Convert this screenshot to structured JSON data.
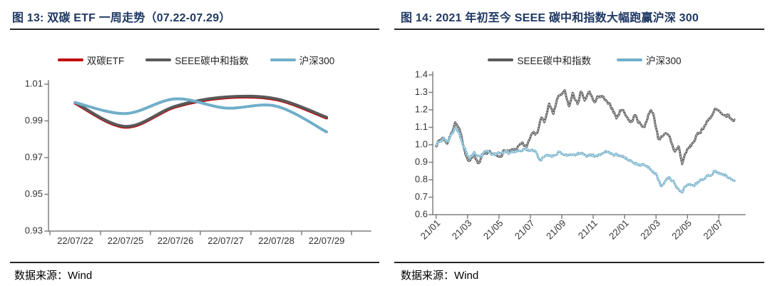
{
  "figures": [
    {
      "title": "图 13:  双碳 ETF 一周走势（07.22-07.29）",
      "source": "数据来源：Wind"
    },
    {
      "title": "图 14:  2021 年初至今 SEEE 碳中和指数大幅跑赢沪深 300",
      "source": "数据来源：Wind"
    }
  ],
  "colors": {
    "title_navy": "#1F3864",
    "rule": "#262626",
    "axis": "#808080",
    "tick_text": "#333333",
    "red": "#C00000",
    "gray": "#595959",
    "blue": "#70AEC9"
  },
  "chart_data": [
    {
      "type": "line",
      "title": "双碳 ETF 一周走势（07.22-07.29）",
      "categories": [
        "22/07/22",
        "22/07/25",
        "22/07/26",
        "22/07/27",
        "22/07/28",
        "22/07/29"
      ],
      "series": [
        {
          "name": "双碳ETF",
          "color": "#C00000",
          "values": [
            1.0,
            0.987,
            0.998,
            1.003,
            1.002,
            0.992
          ]
        },
        {
          "name": "SEEE碳中和指数",
          "color": "#595959",
          "values": [
            1.0,
            0.987,
            0.998,
            1.003,
            1.002,
            0.992
          ]
        },
        {
          "name": "沪深300",
          "color": "#70AEC9",
          "values": [
            1.0,
            0.994,
            1.002,
            0.997,
            0.998,
            0.984
          ]
        }
      ],
      "ylim": [
        0.93,
        1.01
      ],
      "yticks": [
        1.01,
        0.99,
        0.97,
        0.95,
        0.93
      ],
      "ytick_decimals": 2,
      "grid": false,
      "smooth": true,
      "legend_position": "top"
    },
    {
      "type": "line",
      "title": "2021 年初至今 SEEE 碳中和指数大幅跑赢沪深 300",
      "x_unit": "months since 2021-01",
      "xtick_months": [
        0,
        2,
        4,
        6,
        8,
        10,
        12,
        14,
        16,
        18
      ],
      "xtick_labels": [
        "21/01",
        "21/03",
        "21/05",
        "21/07",
        "21/09",
        "21/11",
        "22/01",
        "22/03",
        "22/05",
        "22/07"
      ],
      "xlim": [
        0,
        19.7
      ],
      "ylim": [
        0.6,
        1.4
      ],
      "yticks": [
        1.4,
        1.3,
        1.2,
        1.1,
        1.0,
        0.9,
        0.8,
        0.7,
        0.6
      ],
      "ytick_decimals": 1,
      "grid": false,
      "legend_position": "top",
      "noise": {
        "seed": 7,
        "step": 0.045
      },
      "series": [
        {
          "name": "SEEE碳中和指数",
          "color": "#595959",
          "noise_amp": 0.02,
          "points": [
            [
              0,
              1.0
            ],
            [
              0.2,
              1.025
            ],
            [
              0.45,
              1.04
            ],
            [
              0.7,
              1.01
            ],
            [
              0.95,
              1.06
            ],
            [
              1.2,
              1.13
            ],
            [
              1.45,
              1.09
            ],
            [
              1.7,
              1.01
            ],
            [
              2.0,
              0.92
            ],
            [
              2.15,
              0.9
            ],
            [
              2.35,
              0.945
            ],
            [
              2.6,
              0.915
            ],
            [
              2.75,
              0.89
            ],
            [
              3.0,
              0.95
            ],
            [
              3.2,
              0.935
            ],
            [
              3.45,
              0.955
            ],
            [
              3.7,
              0.94
            ],
            [
              4.0,
              0.925
            ],
            [
              4.3,
              0.965
            ],
            [
              4.6,
              0.955
            ],
            [
              4.9,
              0.965
            ],
            [
              5.2,
              0.985
            ],
            [
              5.5,
              1.0
            ],
            [
              5.75,
              0.985
            ],
            [
              6.0,
              1.05
            ],
            [
              6.2,
              1.09
            ],
            [
              6.4,
              1.06
            ],
            [
              6.7,
              1.16
            ],
            [
              6.9,
              1.12
            ],
            [
              7.2,
              1.24
            ],
            [
              7.45,
              1.17
            ],
            [
              7.7,
              1.26
            ],
            [
              7.95,
              1.29
            ],
            [
              8.2,
              1.3
            ],
            [
              8.45,
              1.21
            ],
            [
              8.7,
              1.295
            ],
            [
              9.0,
              1.23
            ],
            [
              9.2,
              1.3
            ],
            [
              9.45,
              1.25
            ],
            [
              9.75,
              1.3
            ],
            [
              10.1,
              1.24
            ],
            [
              10.4,
              1.285
            ],
            [
              10.7,
              1.26
            ],
            [
              10.95,
              1.23
            ],
            [
              11.25,
              1.205
            ],
            [
              11.5,
              1.15
            ],
            [
              11.8,
              1.21
            ],
            [
              12.1,
              1.17
            ],
            [
              12.4,
              1.125
            ],
            [
              12.65,
              1.17
            ],
            [
              12.95,
              1.125
            ],
            [
              13.25,
              1.1
            ],
            [
              13.6,
              1.2
            ],
            [
              13.85,
              1.17
            ],
            [
              14.15,
              1.03
            ],
            [
              14.5,
              1.065
            ],
            [
              14.85,
              1.04
            ],
            [
              15.2,
              0.96
            ],
            [
              15.45,
              0.99
            ],
            [
              15.65,
              0.89
            ],
            [
              15.9,
              0.96
            ],
            [
              16.2,
              0.99
            ],
            [
              16.6,
              1.05
            ],
            [
              17.0,
              1.1
            ],
            [
              17.4,
              1.15
            ],
            [
              17.75,
              1.2
            ],
            [
              18.05,
              1.185
            ],
            [
              18.3,
              1.155
            ],
            [
              18.6,
              1.17
            ],
            [
              18.8,
              1.14
            ],
            [
              19.0,
              1.145
            ]
          ]
        },
        {
          "name": "沪深300",
          "color": "#70AEC9",
          "noise_amp": 0.014,
          "points": [
            [
              0,
              1.0
            ],
            [
              0.25,
              1.02
            ],
            [
              0.5,
              1.035
            ],
            [
              0.75,
              1.02
            ],
            [
              1.0,
              1.06
            ],
            [
              1.2,
              1.1
            ],
            [
              1.45,
              1.07
            ],
            [
              1.7,
              1.0
            ],
            [
              2.0,
              0.94
            ],
            [
              2.2,
              0.93
            ],
            [
              2.4,
              0.955
            ],
            [
              2.65,
              0.935
            ],
            [
              2.9,
              0.945
            ],
            [
              3.1,
              0.955
            ],
            [
              3.35,
              0.96
            ],
            [
              3.6,
              0.94
            ],
            [
              3.85,
              0.945
            ],
            [
              4.1,
              0.955
            ],
            [
              4.35,
              0.965
            ],
            [
              4.6,
              0.955
            ],
            [
              4.85,
              0.965
            ],
            [
              5.1,
              0.96
            ],
            [
              5.4,
              0.965
            ],
            [
              5.7,
              0.975
            ],
            [
              6.0,
              0.97
            ],
            [
              6.3,
              0.965
            ],
            [
              6.6,
              0.905
            ],
            [
              6.9,
              0.94
            ],
            [
              7.2,
              0.93
            ],
            [
              7.5,
              0.94
            ],
            [
              7.8,
              0.955
            ],
            [
              8.1,
              0.95
            ],
            [
              8.4,
              0.935
            ],
            [
              8.7,
              0.945
            ],
            [
              9.0,
              0.95
            ],
            [
              9.3,
              0.95
            ],
            [
              9.6,
              0.94
            ],
            [
              9.9,
              0.945
            ],
            [
              10.2,
              0.935
            ],
            [
              10.5,
              0.95
            ],
            [
              10.8,
              0.97
            ],
            [
              11.1,
              0.95
            ],
            [
              11.4,
              0.945
            ],
            [
              11.7,
              0.935
            ],
            [
              12.0,
              0.93
            ],
            [
              12.3,
              0.91
            ],
            [
              12.6,
              0.895
            ],
            [
              12.9,
              0.89
            ],
            [
              13.2,
              0.885
            ],
            [
              13.5,
              0.87
            ],
            [
              13.75,
              0.855
            ],
            [
              14.0,
              0.83
            ],
            [
              14.15,
              0.8
            ],
            [
              14.35,
              0.757
            ],
            [
              14.6,
              0.8
            ],
            [
              14.85,
              0.81
            ],
            [
              15.1,
              0.79
            ],
            [
              15.4,
              0.75
            ],
            [
              15.65,
              0.73
            ],
            [
              15.9,
              0.765
            ],
            [
              16.2,
              0.765
            ],
            [
              16.5,
              0.775
            ],
            [
              16.8,
              0.79
            ],
            [
              17.1,
              0.81
            ],
            [
              17.45,
              0.83
            ],
            [
              17.7,
              0.85
            ],
            [
              17.95,
              0.845
            ],
            [
              18.2,
              0.83
            ],
            [
              18.5,
              0.815
            ],
            [
              18.8,
              0.805
            ],
            [
              19.0,
              0.8
            ]
          ]
        }
      ]
    }
  ]
}
